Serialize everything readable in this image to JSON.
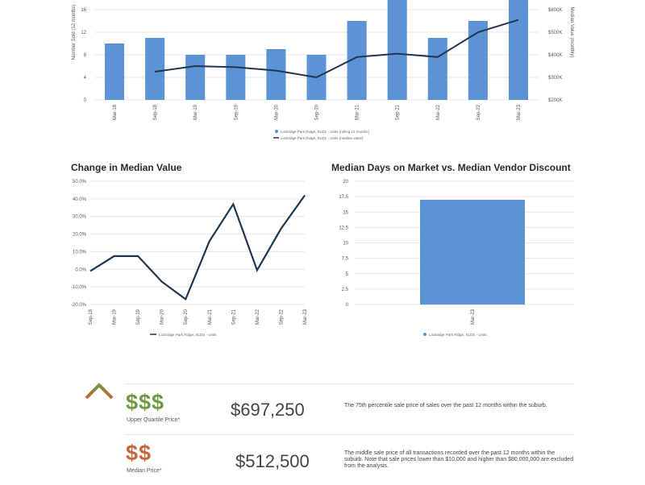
{
  "bar_line_chart": {
    "type": "bar+line",
    "categories": [
      "Mar-18",
      "Sep-18",
      "Mar-19",
      "Sep-19",
      "Mar-20",
      "Sep-20",
      "Mar-21",
      "Sep-21",
      "Mar-22",
      "Sep-22",
      "Mar-23"
    ],
    "series": [
      {
        "name": "Lockridge Park Ridge, XLDS - Units (rolling 12 months)",
        "kind": "bar",
        "axis": "left",
        "values": [
          10,
          11,
          8,
          8,
          9,
          8,
          14,
          18,
          11,
          14,
          18
        ]
      },
      {
        "name": "Lockridge Park Ridge, XLDS - Units (median value)",
        "kind": "line",
        "axis": "right",
        "values": [
          null,
          325,
          350,
          345,
          330,
          300,
          390,
          405,
          390,
          500,
          555
        ]
      }
    ],
    "ylabel_left": "Number Sold (12 months)",
    "ylabel_right": "Median Value (monthly)",
    "y_left_ticks": [
      "0",
      "4",
      "8",
      "12",
      "16"
    ],
    "y_right_ticks": [
      "$200K",
      "$300K",
      "$400K",
      "$500K",
      "$600K"
    ],
    "ylim_left": [
      0,
      16
    ],
    "ylim_right": [
      200,
      600
    ],
    "bar_color": "#5b93d4",
    "line_color": "#1f3550"
  },
  "chart_data": [
    {
      "type": "line",
      "title": "Change in Median Value",
      "categories": [
        "Sep-18",
        "Mar-19",
        "Sep-19",
        "Mar-20",
        "Sep-20",
        "Mar-21",
        "Sep-21",
        "Mar-22",
        "Sep-22",
        "Mar-23"
      ],
      "values": [
        -1,
        7.5,
        7.5,
        -7,
        -17,
        16,
        37,
        -0.5,
        23,
        42
      ],
      "y_ticks": [
        "-20.0%",
        "-10.0%",
        "0.0%",
        "10.0%",
        "20.0%",
        "30.0%",
        "40.0%",
        "50.0%"
      ],
      "ylim": [
        -20,
        50
      ],
      "legend": "Lockridge Park Ridge, XLDS - Units",
      "line_color": "#1f3550"
    },
    {
      "type": "bar",
      "title": "Median Days on Market vs. Median Vendor Discount",
      "categories": [
        "Mar-23"
      ],
      "values": [
        17
      ],
      "y_ticks": [
        "0",
        "2.5",
        "5",
        "7.5",
        "10",
        "12.5",
        "15",
        "17.5",
        "20"
      ],
      "ylim": [
        0,
        20
      ],
      "legend": "Lockridge Park Ridge, XLDS - Units",
      "bar_color": "#5b93d4"
    }
  ],
  "price_table": [
    {
      "symbol": "$$$",
      "label": "Upper Quartile Price*",
      "price": "$697,250",
      "color": "#6f9a3c",
      "desc": "The 75th percentile sale price of sales over the past 12 months within the suburb."
    },
    {
      "symbol": "$$",
      "label": "Median Price*",
      "price": "$512,500",
      "color": "#c8643a",
      "desc": "The middle sale price of all transactions recorded over the past 12 months within the suburb. Note that sale prices lower than $10,000 and higher than $80,000,000 are excluded from the analysis."
    }
  ]
}
